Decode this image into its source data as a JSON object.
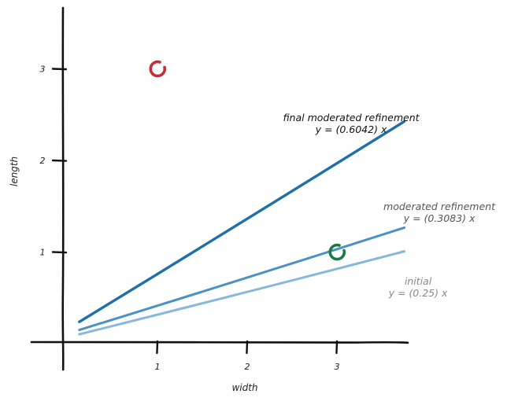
{
  "chart_data": {
    "type": "scatter",
    "xlabel": "width",
    "ylabel": "length",
    "xlim": [
      -0.95,
      3.95
    ],
    "ylim": [
      -0.05,
      3.65
    ],
    "xticks": [
      1,
      2,
      3
    ],
    "yticks": [
      1,
      2,
      3
    ],
    "points": [
      {
        "x": 1,
        "y": 3,
        "color": "#c0303a"
      },
      {
        "x": 3,
        "y": 1,
        "color": "#1e7a45"
      }
    ],
    "lines": [
      {
        "label": "final moderated refinement",
        "equation": "y = (0.6042) x",
        "slope": 0.6042,
        "x_range": [
          -0.85,
          3.75
        ],
        "y0": 0.16,
        "color": "#1f6fa8",
        "label_color": "#111111"
      },
      {
        "label": "moderated refinement",
        "equation": "y = (0.3083) x",
        "slope": 0.3083,
        "x_range": [
          -0.85,
          3.75
        ],
        "y0": 0.11,
        "color": "#4a91c4",
        "label_color": "#555555"
      },
      {
        "label": "initial",
        "equation": "y = (0.25) x",
        "slope": 0.25,
        "x_range": [
          -0.85,
          3.75
        ],
        "y0": 0.07,
        "color": "#85b8db",
        "label_color": "#888888"
      }
    ]
  }
}
